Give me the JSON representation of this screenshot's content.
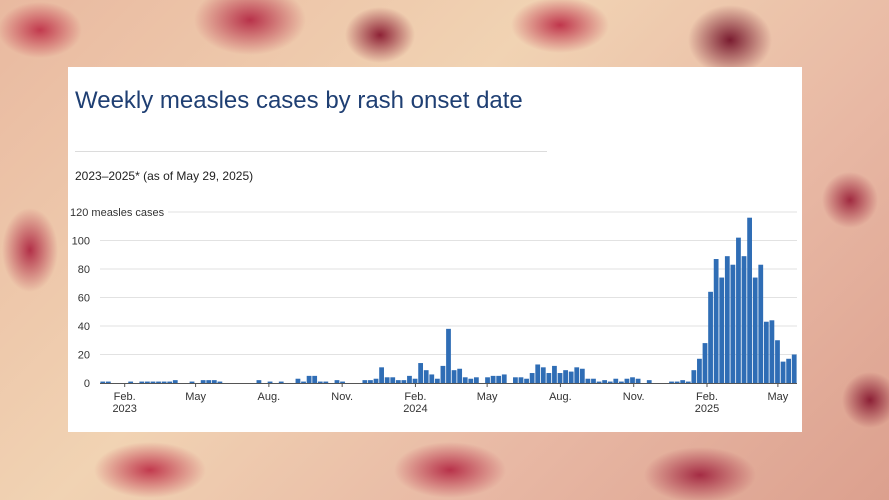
{
  "title": "Weekly measles cases by rash onset date",
  "subtitle": "2023–2025* (as of May 29, 2025)",
  "colors": {
    "bar": "#2f6db5",
    "title": "#1f3f73",
    "grid": "#e2e2e2"
  },
  "chart_data": {
    "type": "bar",
    "title": "Weekly measles cases by rash onset date",
    "subtitle": "2023–2025* (as of May 29, 2025)",
    "ylabel": "measles cases",
    "ylim": [
      0,
      120
    ],
    "yticks": [
      0,
      20,
      40,
      60,
      80,
      100,
      120
    ],
    "ytick_labels": [
      "0",
      "20",
      "40",
      "60",
      "80",
      "100",
      "120 measles cases"
    ],
    "grid": true,
    "xticks": [
      {
        "date": "2023-02-01",
        "label": "Feb.",
        "sublabel": "2023"
      },
      {
        "date": "2023-05-01",
        "label": "May",
        "sublabel": ""
      },
      {
        "date": "2023-08-01",
        "label": "Aug.",
        "sublabel": ""
      },
      {
        "date": "2023-11-01",
        "label": "Nov.",
        "sublabel": ""
      },
      {
        "date": "2024-02-01",
        "label": "Feb.",
        "sublabel": "2024"
      },
      {
        "date": "2024-05-01",
        "label": "May",
        "sublabel": ""
      },
      {
        "date": "2024-08-01",
        "label": "Aug.",
        "sublabel": ""
      },
      {
        "date": "2024-11-01",
        "label": "Nov.",
        "sublabel": ""
      },
      {
        "date": "2025-02-01",
        "label": "Feb.",
        "sublabel": "2025"
      },
      {
        "date": "2025-05-01",
        "label": "May",
        "sublabel": ""
      }
    ],
    "x": [
      "2023-01-01",
      "2023-01-08",
      "2023-01-15",
      "2023-01-22",
      "2023-01-29",
      "2023-02-05",
      "2023-02-12",
      "2023-02-19",
      "2023-02-26",
      "2023-03-05",
      "2023-03-12",
      "2023-03-19",
      "2023-03-26",
      "2023-04-02",
      "2023-04-09",
      "2023-04-16",
      "2023-04-23",
      "2023-04-30",
      "2023-05-07",
      "2023-05-14",
      "2023-05-21",
      "2023-05-28",
      "2023-06-04",
      "2023-06-11",
      "2023-06-18",
      "2023-06-25",
      "2023-07-02",
      "2023-07-09",
      "2023-07-16",
      "2023-07-23",
      "2023-07-30",
      "2023-08-06",
      "2023-08-13",
      "2023-08-20",
      "2023-08-27",
      "2023-09-03",
      "2023-09-10",
      "2023-09-17",
      "2023-09-24",
      "2023-10-01",
      "2023-10-08",
      "2023-10-15",
      "2023-10-22",
      "2023-10-29",
      "2023-11-05",
      "2023-11-12",
      "2023-11-19",
      "2023-11-26",
      "2023-12-03",
      "2023-12-10",
      "2023-12-17",
      "2023-12-24",
      "2023-12-31",
      "2024-01-07",
      "2024-01-14",
      "2024-01-21",
      "2024-01-28",
      "2024-02-04",
      "2024-02-11",
      "2024-02-18",
      "2024-02-25",
      "2024-03-03",
      "2024-03-10",
      "2024-03-17",
      "2024-03-24",
      "2024-03-31",
      "2024-04-07",
      "2024-04-14",
      "2024-04-21",
      "2024-04-28",
      "2024-05-05",
      "2024-05-12",
      "2024-05-19",
      "2024-05-26",
      "2024-06-02",
      "2024-06-09",
      "2024-06-16",
      "2024-06-23",
      "2024-06-30",
      "2024-07-07",
      "2024-07-14",
      "2024-07-21",
      "2024-07-28",
      "2024-08-04",
      "2024-08-11",
      "2024-08-18",
      "2024-08-25",
      "2024-09-01",
      "2024-09-08",
      "2024-09-15",
      "2024-09-22",
      "2024-09-29",
      "2024-10-06",
      "2024-10-13",
      "2024-10-20",
      "2024-10-27",
      "2024-11-03",
      "2024-11-10",
      "2024-11-17",
      "2024-11-24",
      "2024-12-01",
      "2024-12-08",
      "2024-12-15",
      "2024-12-22",
      "2024-12-29",
      "2025-01-05",
      "2025-01-12",
      "2025-01-19",
      "2025-01-26",
      "2025-02-02",
      "2025-02-09",
      "2025-02-16",
      "2025-02-23",
      "2025-03-02",
      "2025-03-09",
      "2025-03-16",
      "2025-03-23",
      "2025-03-30",
      "2025-04-06",
      "2025-04-13",
      "2025-04-20",
      "2025-04-27",
      "2025-05-04",
      "2025-05-11",
      "2025-05-18"
    ],
    "values": [
      1,
      1,
      0,
      0,
      0,
      1,
      0,
      1,
      1,
      1,
      1,
      1,
      1,
      2,
      0,
      0,
      1,
      0,
      2,
      2,
      2,
      1,
      0,
      0,
      0,
      0,
      0,
      0,
      2,
      0,
      1,
      0,
      1,
      0,
      0,
      3,
      1,
      5,
      5,
      1,
      1,
      0,
      2,
      1,
      0,
      0,
      0,
      2,
      2,
      3,
      11,
      4,
      4,
      2,
      2,
      5,
      3,
      14,
      9,
      6,
      3,
      12,
      38,
      9,
      10,
      4,
      3,
      4,
      0,
      4,
      5,
      5,
      6,
      0,
      4,
      4,
      3,
      7,
      13,
      11,
      7,
      12,
      7,
      9,
      8,
      11,
      10,
      3,
      3,
      1,
      2,
      1,
      3,
      1,
      3,
      4,
      3,
      0,
      2,
      0,
      0,
      0,
      1,
      1,
      2,
      1,
      9,
      17,
      28,
      64,
      87,
      74,
      89,
      83,
      102,
      89,
      116,
      74,
      83,
      43,
      44,
      30,
      15,
      17,
      20
    ]
  }
}
